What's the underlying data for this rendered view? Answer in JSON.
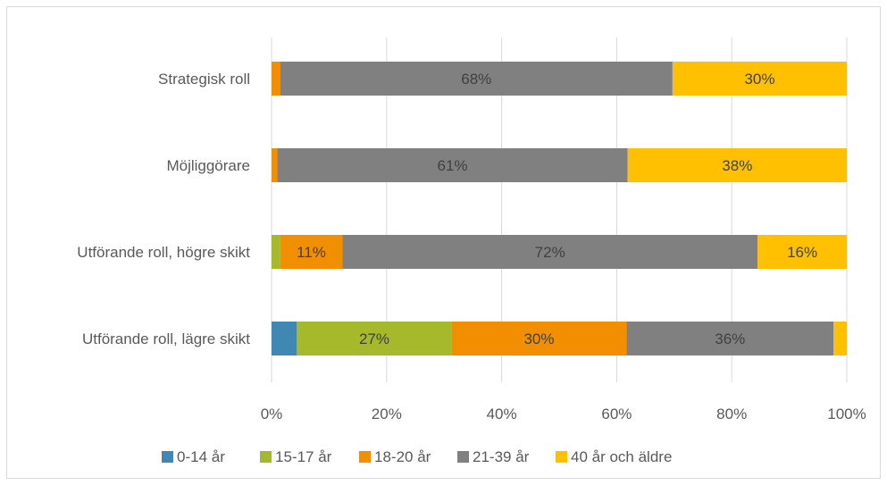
{
  "chart_data": {
    "type": "bar",
    "orientation": "horizontal",
    "stacked": true,
    "percent_stacked": true,
    "categories": [
      "Strategisk roll",
      "Möjliggörare",
      "Utförande roll, högre skikt",
      "Utförande roll, lägre skikt"
    ],
    "series": [
      {
        "name": "0-14 år",
        "color": "#3f88b3",
        "values": [
          0,
          0,
          0,
          4.4
        ],
        "labels": [
          "",
          "",
          "",
          ""
        ]
      },
      {
        "name": "15-17 år",
        "color": "#a5b92a",
        "values": [
          0,
          0,
          1.5,
          26.9
        ],
        "labels": [
          "",
          "",
          "",
          "27%"
        ]
      },
      {
        "name": "18-20 år",
        "color": "#f18f00",
        "values": [
          1.5,
          1.0,
          10.8,
          30.4
        ],
        "labels": [
          "",
          "",
          "11%",
          "30%"
        ]
      },
      {
        "name": "21-39 år",
        "color": "#808080",
        "values": [
          68.2,
          60.9,
          72.2,
          36.0
        ],
        "labels": [
          "68%",
          "61%",
          "72%",
          "36%"
        ]
      },
      {
        "name": "40 år och äldre",
        "color": "#fec000",
        "values": [
          30.3,
          38.1,
          15.5,
          2.3
        ],
        "labels": [
          "30%",
          "38%",
          "16%",
          ""
        ]
      }
    ],
    "x_ticks": [
      "0%",
      "20%",
      "40%",
      "60%",
      "80%",
      "100%"
    ],
    "xlim": [
      0,
      100
    ],
    "grid": true,
    "legend_position": "bottom",
    "title": "",
    "xlabel": "",
    "ylabel": ""
  }
}
